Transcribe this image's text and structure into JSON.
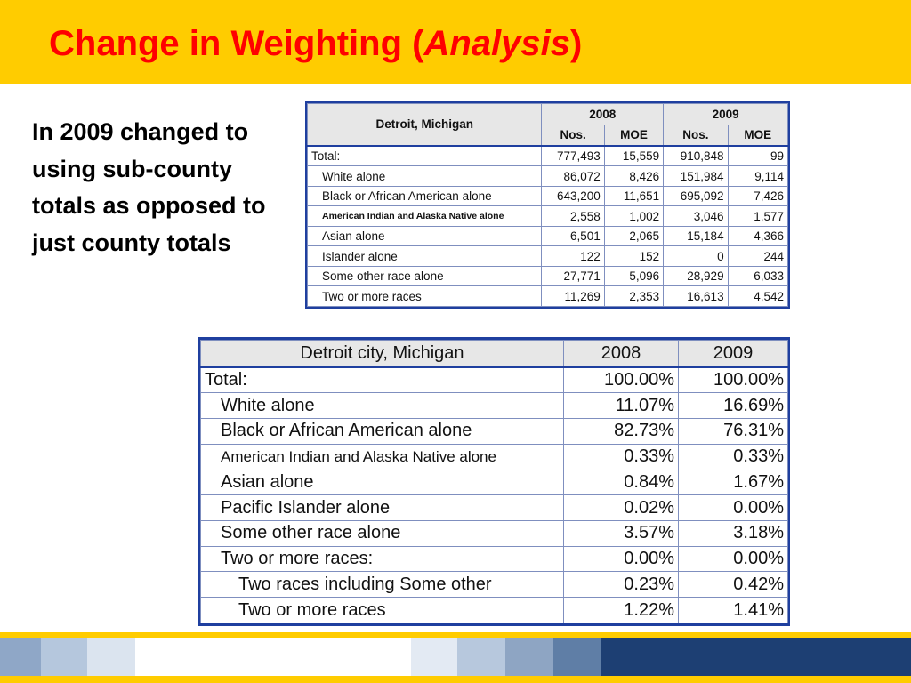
{
  "title": {
    "main": "Change in Weighting (",
    "em": "Analysis",
    "close": ")"
  },
  "body_text": "In 2009 changed to using sub-county totals as opposed to just county totals",
  "table1": {
    "place": "Detroit, Michigan",
    "years": [
      "2008",
      "2009"
    ],
    "subheaders": [
      "Nos.",
      "MOE",
      "Nos.",
      "MOE"
    ],
    "rows": [
      {
        "label": "Total:",
        "values": [
          "777,493",
          "15,559",
          "910,848",
          "99"
        ]
      },
      {
        "label": "White alone",
        "values": [
          "86,072",
          "8,426",
          "151,984",
          "9,114"
        ]
      },
      {
        "label": "Black or African American alone",
        "values": [
          "643,200",
          "11,651",
          "695,092",
          "7,426"
        ]
      },
      {
        "label": "American Indian and Alaska Native alone",
        "values": [
          "2,558",
          "1,002",
          "3,046",
          "1,577"
        ]
      },
      {
        "label": "Asian alone",
        "values": [
          "6,501",
          "2,065",
          "15,184",
          "4,366"
        ]
      },
      {
        "label": "Islander alone",
        "values": [
          "122",
          "152",
          "0",
          "244"
        ]
      },
      {
        "label": "Some other race alone",
        "values": [
          "27,771",
          "5,096",
          "28,929",
          "6,033"
        ]
      },
      {
        "label": "Two or more races",
        "values": [
          "11,269",
          "2,353",
          "16,613",
          "4,542"
        ]
      }
    ]
  },
  "table2": {
    "place": "Detroit city, Michigan",
    "years": [
      "2008",
      "2009"
    ],
    "rows": [
      {
        "label": "Total:",
        "values": [
          "100.00%",
          "100.00%"
        ]
      },
      {
        "label": "White alone",
        "values": [
          "11.07%",
          "16.69%"
        ]
      },
      {
        "label": "Black or African American alone",
        "values": [
          "82.73%",
          "76.31%"
        ]
      },
      {
        "label": "American Indian and Alaska Native alone",
        "values": [
          "0.33%",
          "0.33%"
        ]
      },
      {
        "label": "Asian alone",
        "values": [
          "0.84%",
          "1.67%"
        ]
      },
      {
        "label": "Pacific Islander alone",
        "values": [
          "0.02%",
          "0.00%"
        ]
      },
      {
        "label": "Some other race alone",
        "values": [
          "3.57%",
          "3.18%"
        ]
      },
      {
        "label": "Two or more races:",
        "values": [
          "0.00%",
          "0.00%"
        ]
      },
      {
        "label": "Two races including Some other",
        "values": [
          "0.23%",
          "0.42%"
        ]
      },
      {
        "label": "Two or more races",
        "values": [
          "1.22%",
          "1.41%"
        ]
      }
    ]
  },
  "colors": {
    "header_bg": "#ffcc00",
    "title": "#ff0000",
    "table_border": "#1f3f9f"
  }
}
